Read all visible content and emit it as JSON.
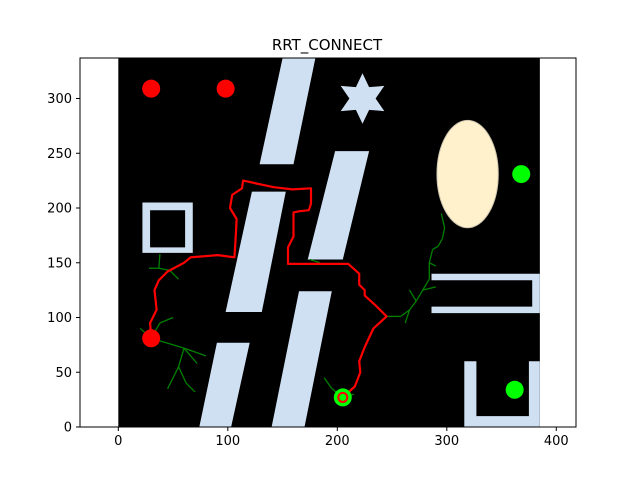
{
  "chart_data": {
    "type": "scatter",
    "title": "RRT_CONNECT",
    "xlabel": "",
    "ylabel": "",
    "xlim": [
      -35,
      418
    ],
    "ylim": [
      0,
      337
    ],
    "xticks": [
      0,
      100,
      200,
      300,
      400
    ],
    "yticks": [
      0,
      50,
      100,
      150,
      200,
      250,
      300
    ],
    "grid": false,
    "background": "#000000",
    "obstacle_color": "#cfe0f2",
    "ellipse_color": "#fff1cc",
    "path_color": "#ff0000",
    "tree_color": "#008000",
    "map_extent": {
      "x": [
        0,
        385
      ],
      "y": [
        0,
        337
      ]
    },
    "obstacles": [
      {
        "kind": "parallelogram",
        "points": [
          [
            129,
            240
          ],
          [
            160,
            240
          ],
          [
            180,
            337
          ],
          [
            150,
            337
          ]
        ]
      },
      {
        "kind": "parallelogram",
        "points": [
          [
            173,
            153
          ],
          [
            205,
            153
          ],
          [
            229,
            252
          ],
          [
            198,
            252
          ]
        ]
      },
      {
        "kind": "parallelogram",
        "points": [
          [
            98,
            105
          ],
          [
            131,
            105
          ],
          [
            153,
            215
          ],
          [
            122,
            215
          ]
        ]
      },
      {
        "kind": "parallelogram",
        "points": [
          [
            140,
            0
          ],
          [
            170,
            0
          ],
          [
            195,
            124
          ],
          [
            165,
            124
          ]
        ]
      },
      {
        "kind": "parallelogram",
        "points": [
          [
            74,
            0
          ],
          [
            103,
            0
          ],
          [
            120,
            77
          ],
          [
            90,
            77
          ]
        ]
      },
      {
        "kind": "square_frame",
        "outer": [
          [
            22,
            159
          ],
          [
            68,
            205
          ]
        ],
        "inner": [
          [
            29,
            164
          ],
          [
            61,
            198
          ]
        ]
      },
      {
        "kind": "star",
        "center": [
          223,
          300
        ],
        "outer_radius": 23,
        "inner_radius": 12
      },
      {
        "kind": "bracket",
        "points": [
          [
            286,
            104
          ],
          [
            385,
            104
          ],
          [
            385,
            140
          ],
          [
            286,
            140
          ],
          [
            286,
            134
          ],
          [
            378,
            134
          ],
          [
            378,
            110
          ],
          [
            286,
            110
          ]
        ]
      },
      {
        "kind": "u_shape",
        "points": [
          [
            316,
            0
          ],
          [
            385,
            0
          ],
          [
            385,
            60
          ],
          [
            375,
            60
          ],
          [
            375,
            10
          ],
          [
            327,
            10
          ],
          [
            327,
            60
          ],
          [
            316,
            60
          ]
        ]
      }
    ],
    "ellipse": {
      "center": [
        319,
        231
      ],
      "rx": 28,
      "ry": 49
    },
    "points": [
      {
        "color": "red",
        "x": 30,
        "y": 309
      },
      {
        "color": "red",
        "x": 98,
        "y": 309
      },
      {
        "color": "red",
        "x": 30,
        "y": 81
      },
      {
        "color": "lime",
        "x": 368,
        "y": 231
      },
      {
        "color": "lime",
        "x": 362,
        "y": 34
      },
      {
        "color": "lime",
        "x": 205,
        "y": 27
      }
    ],
    "start_ring": {
      "x": 205,
      "y": 27
    },
    "path": [
      [
        205,
        27
      ],
      [
        216,
        37
      ],
      [
        221,
        50
      ],
      [
        220,
        60
      ],
      [
        225,
        73
      ],
      [
        233,
        90
      ],
      [
        245,
        101
      ],
      [
        234,
        112
      ],
      [
        225,
        120
      ],
      [
        225,
        125
      ],
      [
        220,
        130
      ],
      [
        220,
        140
      ],
      [
        210,
        149
      ],
      [
        155,
        149
      ],
      [
        155,
        164
      ],
      [
        160,
        174
      ],
      [
        160,
        196
      ],
      [
        165,
        197
      ],
      [
        174,
        198
      ],
      [
        176,
        204
      ],
      [
        176,
        218
      ],
      [
        159,
        217
      ],
      [
        142,
        219
      ],
      [
        114,
        225
      ],
      [
        113,
        218
      ],
      [
        104,
        212
      ],
      [
        102,
        200
      ],
      [
        108,
        190
      ],
      [
        107,
        170
      ],
      [
        106,
        155
      ],
      [
        91,
        157
      ],
      [
        66,
        155
      ],
      [
        60,
        150
      ],
      [
        45,
        142
      ],
      [
        37,
        134
      ],
      [
        33,
        125
      ],
      [
        35,
        107
      ],
      [
        29,
        95
      ],
      [
        30,
        81
      ]
    ],
    "tree_edges": [
      [
        [
          30,
          81
        ],
        [
          20,
          90
        ]
      ],
      [
        [
          30,
          81
        ],
        [
          38,
          95
        ]
      ],
      [
        [
          38,
          95
        ],
        [
          50,
          100
        ]
      ],
      [
        [
          30,
          81
        ],
        [
          60,
          72
        ]
      ],
      [
        [
          60,
          72
        ],
        [
          80,
          65
        ]
      ],
      [
        [
          60,
          72
        ],
        [
          55,
          55
        ]
      ],
      [
        [
          55,
          55
        ],
        [
          62,
          40
        ]
      ],
      [
        [
          62,
          40
        ],
        [
          70,
          32
        ]
      ],
      [
        [
          55,
          55
        ],
        [
          45,
          35
        ]
      ],
      [
        [
          60,
          72
        ],
        [
          72,
          58
        ]
      ],
      [
        [
          28,
          145
        ],
        [
          37,
          145
        ]
      ],
      [
        [
          37,
          145
        ],
        [
          47,
          143
        ]
      ],
      [
        [
          47,
          143
        ],
        [
          55,
          135
        ]
      ],
      [
        [
          37,
          145
        ],
        [
          38,
          158
        ]
      ],
      [
        [
          205,
          27
        ],
        [
          195,
          35
        ]
      ],
      [
        [
          195,
          35
        ],
        [
          188,
          45
        ]
      ],
      [
        [
          205,
          27
        ],
        [
          215,
          30
        ]
      ],
      [
        [
          245,
          101
        ],
        [
          258,
          101
        ]
      ],
      [
        [
          258,
          101
        ],
        [
          266,
          107
        ]
      ],
      [
        [
          266,
          107
        ],
        [
          272,
          115
        ]
      ],
      [
        [
          272,
          115
        ],
        [
          278,
          125
        ]
      ],
      [
        [
          278,
          125
        ],
        [
          284,
          135
        ]
      ],
      [
        [
          284,
          135
        ],
        [
          284,
          150
        ]
      ],
      [
        [
          284,
          150
        ],
        [
          287,
          162
        ]
      ],
      [
        [
          287,
          162
        ],
        [
          292,
          165
        ]
      ],
      [
        [
          292,
          165
        ],
        [
          296,
          172
        ]
      ],
      [
        [
          296,
          172
        ],
        [
          298,
          182
        ]
      ],
      [
        [
          298,
          182
        ],
        [
          295,
          195
        ]
      ],
      [
        [
          278,
          125
        ],
        [
          290,
          128
        ]
      ],
      [
        [
          266,
          107
        ],
        [
          262,
          95
        ]
      ],
      [
        [
          272,
          115
        ],
        [
          266,
          125
        ]
      ],
      [
        [
          284,
          150
        ],
        [
          290,
          147
        ]
      ],
      [
        [
          175,
          153
        ],
        [
          184,
          150
        ]
      ]
    ]
  }
}
